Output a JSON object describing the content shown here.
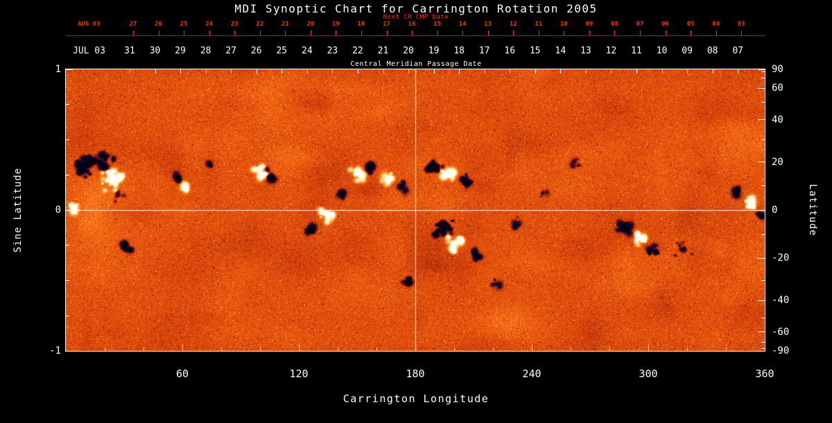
{
  "title": "MDI Synoptic Chart for Carrington Rotation 2005",
  "colors": {
    "background": "#000000",
    "axis_text": "#ffffff",
    "next_cr_axis": "#ff3000",
    "quiet_sun_base": "#e4500c",
    "negative_polarity": "#06061e",
    "positive_polarity": "#fffff2"
  },
  "next_cr_axis": {
    "label": "Next CR CMP Date",
    "month": "AUG 03",
    "days": [
      "27",
      "26",
      "25",
      "24",
      "23",
      "22",
      "21",
      "20",
      "19",
      "18",
      "17",
      "16",
      "15",
      "14",
      "13",
      "12",
      "11",
      "10",
      "09",
      "08",
      "07",
      "06",
      "05",
      "04",
      "03"
    ]
  },
  "cmp_axis": {
    "label": "Central Meridian Passage Date",
    "month": "JUL 03",
    "days": [
      "31",
      "30",
      "29",
      "28",
      "27",
      "26",
      "25",
      "24",
      "23",
      "22",
      "21",
      "20",
      "19",
      "18",
      "17",
      "16",
      "15",
      "14",
      "13",
      "12",
      "11",
      "10",
      "09",
      "08",
      "07"
    ]
  },
  "x_axis": {
    "label": "Carrington Longitude",
    "ticks": [
      "60",
      "120",
      "180",
      "240",
      "300",
      "360"
    ],
    "range": [
      0,
      360
    ]
  },
  "y_axis_left": {
    "label": "Sine Latitude",
    "ticks": [
      "1",
      "0",
      "-1"
    ],
    "range": [
      -1,
      1
    ]
  },
  "y_axis_right": {
    "label": "Latitude",
    "ticks": [
      "90",
      "60",
      "40",
      "20",
      "0",
      "-20",
      "-40",
      "-60",
      "-90"
    ]
  },
  "chart_data": {
    "type": "heatmap",
    "description": "Solar photospheric magnetic field synoptic map for Carrington rotation 2005. Orange/red speckle = quiet-Sun field, dark navy/black patches = strong negative polarity, white/yellow patches = strong positive polarity. White crosshair marks longitude 180 and sine latitude 0.",
    "x_range_deg": [
      0,
      360
    ],
    "y_range_sine_latitude": [
      -1,
      1
    ],
    "x_ticks_deg": [
      60,
      120,
      180,
      240,
      300,
      360
    ],
    "latitude_ticks_deg": [
      90,
      60,
      40,
      20,
      0,
      -20,
      -40,
      -60,
      -90
    ],
    "crosshair": {
      "longitude_deg": 180,
      "sine_latitude": 0
    },
    "active_regions": [
      {
        "polarity": "negative",
        "lon": 10,
        "slat": 0.3,
        "rlon": 6,
        "rslat": 0.09,
        "n": 26,
        "amp": 1.0
      },
      {
        "polarity": "negative",
        "lon": 20,
        "slat": 0.35,
        "rlon": 5,
        "rslat": 0.06,
        "n": 12,
        "amp": 0.9
      },
      {
        "polarity": "positive",
        "lon": 24,
        "slat": 0.22,
        "rlon": 9,
        "rslat": 0.09,
        "n": 30,
        "amp": 1.0
      },
      {
        "polarity": "positive",
        "lon": 4,
        "slat": 0.04,
        "rlon": 2.5,
        "rslat": 0.05,
        "n": 8,
        "amp": 0.9
      },
      {
        "polarity": "negative",
        "lon": 31,
        "slat": -0.27,
        "rlon": 4,
        "rslat": 0.05,
        "n": 9,
        "amp": 0.7
      },
      {
        "polarity": "negative",
        "lon": 27,
        "slat": 0.1,
        "rlon": 3,
        "rslat": 0.05,
        "n": 7,
        "amp": 0.6
      },
      {
        "polarity": "positive",
        "lon": 61,
        "slat": 0.16,
        "rlon": 3,
        "rslat": 0.05,
        "n": 9,
        "amp": 0.9
      },
      {
        "polarity": "negative",
        "lon": 57,
        "slat": 0.22,
        "rlon": 2.5,
        "rslat": 0.04,
        "n": 6,
        "amp": 0.8
      },
      {
        "polarity": "negative",
        "lon": 74,
        "slat": 0.33,
        "rlon": 2.5,
        "rslat": 0.035,
        "n": 5,
        "amp": 0.5
      },
      {
        "polarity": "positive",
        "lon": 99,
        "slat": 0.27,
        "rlon": 4,
        "rslat": 0.05,
        "n": 10,
        "amp": 1.0
      },
      {
        "polarity": "negative",
        "lon": 105,
        "slat": 0.24,
        "rlon": 3,
        "rslat": 0.05,
        "n": 8,
        "amp": 0.9
      },
      {
        "polarity": "positive",
        "lon": 134,
        "slat": -0.04,
        "rlon": 6,
        "rslat": 0.07,
        "n": 16,
        "amp": 0.9
      },
      {
        "polarity": "negative",
        "lon": 127,
        "slat": -0.13,
        "rlon": 3.5,
        "rslat": 0.05,
        "n": 8,
        "amp": 0.7
      },
      {
        "polarity": "negative",
        "lon": 142,
        "slat": 0.12,
        "rlon": 3,
        "rslat": 0.04,
        "n": 6,
        "amp": 0.6
      },
      {
        "polarity": "positive",
        "lon": 150,
        "slat": 0.26,
        "rlon": 4.5,
        "rslat": 0.06,
        "n": 12,
        "amp": 1.0
      },
      {
        "polarity": "negative",
        "lon": 157,
        "slat": 0.31,
        "rlon": 3.5,
        "rslat": 0.05,
        "n": 9,
        "amp": 0.9
      },
      {
        "polarity": "positive",
        "lon": 165,
        "slat": 0.22,
        "rlon": 4,
        "rslat": 0.05,
        "n": 10,
        "amp": 0.9
      },
      {
        "polarity": "negative",
        "lon": 172,
        "slat": 0.17,
        "rlon": 3,
        "rslat": 0.04,
        "n": 7,
        "amp": 0.7
      },
      {
        "polarity": "negative",
        "lon": 176,
        "slat": -0.5,
        "rlon": 4,
        "rslat": 0.045,
        "n": 9,
        "amp": 0.65
      },
      {
        "polarity": "negative",
        "lon": 189,
        "slat": 0.31,
        "rlon": 5,
        "rslat": 0.06,
        "n": 16,
        "amp": 1.1
      },
      {
        "polarity": "positive",
        "lon": 197,
        "slat": 0.26,
        "rlon": 4.5,
        "rslat": 0.06,
        "n": 13,
        "amp": 1.0
      },
      {
        "polarity": "negative",
        "lon": 206,
        "slat": 0.22,
        "rlon": 3.5,
        "rslat": 0.05,
        "n": 9,
        "amp": 0.9
      },
      {
        "polarity": "negative",
        "lon": 195,
        "slat": -0.13,
        "rlon": 5.5,
        "rslat": 0.07,
        "n": 18,
        "amp": 1.2
      },
      {
        "polarity": "positive",
        "lon": 200,
        "slat": -0.23,
        "rlon": 5,
        "rslat": 0.07,
        "n": 15,
        "amp": 1.1
      },
      {
        "polarity": "negative",
        "lon": 211,
        "slat": -0.31,
        "rlon": 4,
        "rslat": 0.05,
        "n": 10,
        "amp": 0.9
      },
      {
        "polarity": "negative",
        "lon": 221,
        "slat": -0.52,
        "rlon": 3,
        "rslat": 0.04,
        "n": 6,
        "amp": 0.6
      },
      {
        "polarity": "negative",
        "lon": 233,
        "slat": -0.08,
        "rlon": 3,
        "rslat": 0.05,
        "n": 6,
        "amp": 0.5
      },
      {
        "polarity": "negative",
        "lon": 246,
        "slat": 0.12,
        "rlon": 2.5,
        "rslat": 0.035,
        "n": 5,
        "amp": 0.5
      },
      {
        "polarity": "negative",
        "lon": 262,
        "slat": 0.34,
        "rlon": 3,
        "rslat": 0.04,
        "n": 6,
        "amp": 0.5
      },
      {
        "polarity": "negative",
        "lon": 288,
        "slat": -0.12,
        "rlon": 4,
        "rslat": 0.06,
        "n": 11,
        "amp": 0.9
      },
      {
        "polarity": "positive",
        "lon": 295,
        "slat": -0.2,
        "rlon": 4.5,
        "rslat": 0.06,
        "n": 13,
        "amp": 1.0
      },
      {
        "polarity": "negative",
        "lon": 302,
        "slat": -0.28,
        "rlon": 3.5,
        "rslat": 0.05,
        "n": 8,
        "amp": 0.8
      },
      {
        "polarity": "negative",
        "lon": 318,
        "slat": -0.27,
        "rlon": 5,
        "rslat": 0.06,
        "n": 9,
        "amp": 0.55
      },
      {
        "polarity": "negative",
        "lon": 346,
        "slat": 0.13,
        "rlon": 3,
        "rslat": 0.05,
        "n": 8,
        "amp": 0.8
      },
      {
        "polarity": "positive",
        "lon": 352,
        "slat": 0.07,
        "rlon": 4.5,
        "rslat": 0.06,
        "n": 12,
        "amp": 1.0
      },
      {
        "polarity": "negative",
        "lon": 357,
        "slat": -0.03,
        "rlon": 2.5,
        "rslat": 0.04,
        "n": 6,
        "amp": 0.7
      }
    ]
  }
}
